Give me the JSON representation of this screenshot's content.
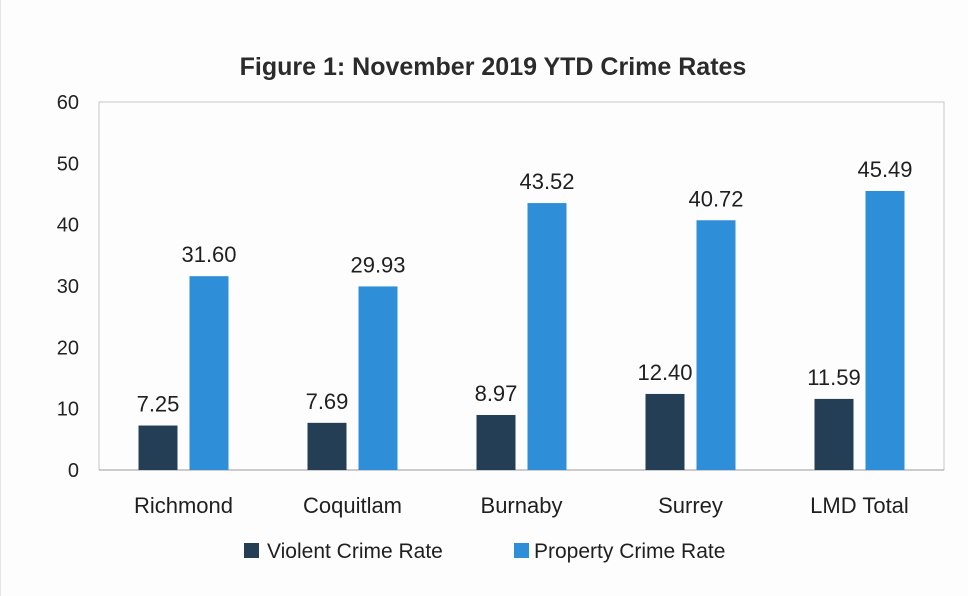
{
  "chart_data": {
    "type": "bar",
    "title": "Figure 1: November 2019 YTD Crime Rates",
    "xlabel": "",
    "ylabel": "",
    "categories": [
      "Richmond",
      "Coquitlam",
      "Burnaby",
      "Surrey",
      "LMD Total"
    ],
    "series": [
      {
        "name": "Violent Crime Rate",
        "values": [
          7.25,
          7.69,
          8.97,
          12.4,
          11.59
        ],
        "labels": [
          "7.25",
          "7.69",
          "8.97",
          "12.40",
          "11.59"
        ],
        "color": "#243f55"
      },
      {
        "name": "Property Crime Rate",
        "values": [
          31.6,
          29.93,
          43.52,
          40.72,
          45.49
        ],
        "labels": [
          "31.60",
          "29.93",
          "43.52",
          "40.72",
          "45.49"
        ],
        "color": "#2e8ed8"
      }
    ],
    "ylim": [
      0,
      60
    ],
    "yticks": [
      "0",
      "10",
      "20",
      "30",
      "40",
      "50",
      "60"
    ],
    "grid": false,
    "legend": "bottom"
  }
}
